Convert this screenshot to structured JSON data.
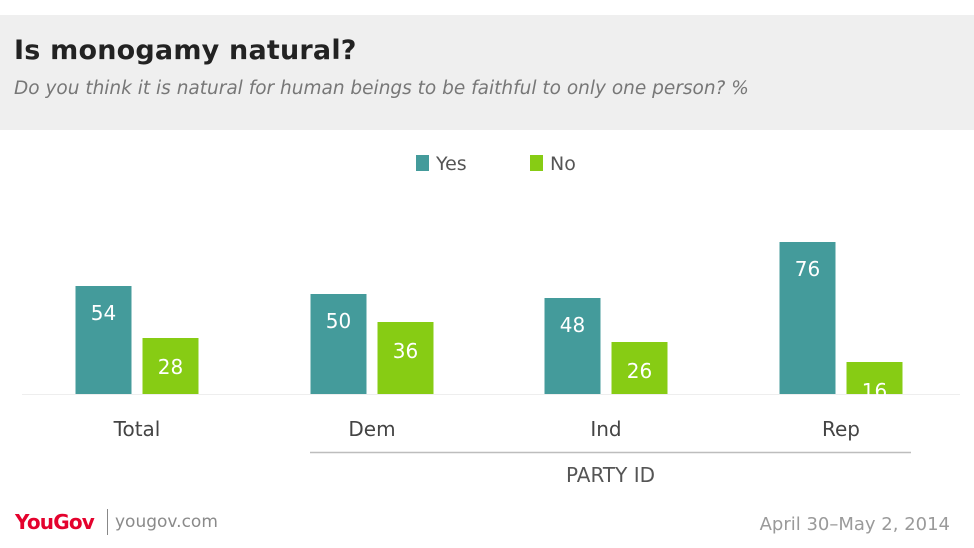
{
  "header": {
    "title": "Is monogamy natural?",
    "subtitle": "Do you think it is natural for human beings to be faithful to only one person? %"
  },
  "footer": {
    "logo": "YouGov",
    "site": "yougov.com",
    "date": "April 30–May 2, 2014"
  },
  "colors": {
    "yes": "#449b9b",
    "no": "#87cc14"
  },
  "chart_data": {
    "type": "bar",
    "title": "Is monogamy natural?",
    "subtitle": "Do you think it is natural for human beings to be faithful to only one person? %",
    "categories": [
      "Total",
      "Dem",
      "Ind",
      "Rep"
    ],
    "series": [
      {
        "name": "Yes",
        "values": [
          54,
          50,
          48,
          76
        ],
        "color": "#449b9b"
      },
      {
        "name": "No",
        "values": [
          28,
          36,
          26,
          16
        ],
        "color": "#87cc14"
      }
    ],
    "group_label": {
      "text": "PARTY ID",
      "categories": [
        "Dem",
        "Ind",
        "Rep"
      ]
    },
    "legend_position": "top-center",
    "grid": false,
    "ylim": [
      0,
      80
    ]
  }
}
